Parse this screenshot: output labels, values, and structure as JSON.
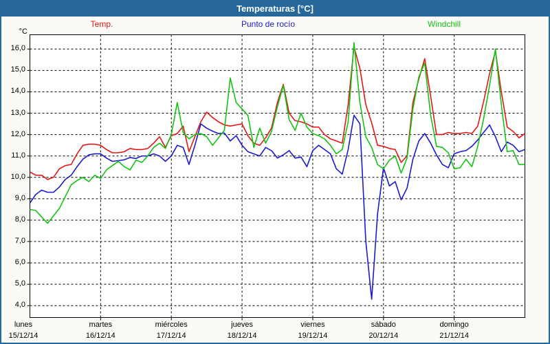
{
  "window": {
    "title": "Temperaturas [°C]",
    "titlebar_color": "#26689B",
    "border_color": "#26689B",
    "background_color": "#fafbf6",
    "plot_background": "#ffffff"
  },
  "legend": {
    "temp_label": "Temp.",
    "dewpoint_label": "Punto de rocío",
    "windchill_label": "Windchill"
  },
  "axis": {
    "unit_label": "°C",
    "ytick_labels": [
      "16,0",
      "15,0",
      "14,0",
      "13,0",
      "12,0",
      "11,0",
      "10,0",
      "9,0",
      "8,0",
      "7,0",
      "6,0",
      "5,0",
      "4,0"
    ]
  },
  "chart_data": {
    "type": "line",
    "title": "Temperaturas [°C]",
    "xlabel": "",
    "ylabel": "°C",
    "ylim": [
      4.0,
      16.0
    ],
    "grid": "dashed",
    "legend_position": "top",
    "x_days": [
      {
        "name": "lunes",
        "date": "15/12/14"
      },
      {
        "name": "martes",
        "date": "16/12/14"
      },
      {
        "name": "miércoles",
        "date": "17/12/14"
      },
      {
        "name": "jueves",
        "date": "18/12/14"
      },
      {
        "name": "viernes",
        "date": "19/12/14"
      },
      {
        "name": "sábado",
        "date": "20/12/14"
      },
      {
        "name": "domingo",
        "date": "21/12/14"
      }
    ],
    "hours_per_point": 2,
    "series": [
      {
        "name": "Temp.",
        "color": "#e81515",
        "values": [
          10.25,
          10.1,
          10.1,
          9.9,
          10.0,
          10.4,
          10.55,
          10.6,
          11.1,
          11.5,
          11.55,
          11.55,
          11.5,
          11.3,
          11.15,
          11.15,
          11.2,
          11.35,
          11.3,
          11.3,
          11.35,
          11.6,
          11.9,
          11.4,
          11.95,
          12.05,
          12.4,
          11.2,
          11.9,
          12.6,
          13.05,
          12.8,
          12.6,
          12.45,
          12.4,
          12.45,
          12.5,
          11.95,
          11.6,
          11.5,
          11.85,
          12.3,
          13.5,
          14.35,
          13.0,
          12.65,
          12.6,
          12.5,
          12.35,
          12.35,
          12.0,
          11.8,
          11.7,
          11.6,
          13.4,
          16.1,
          15.1,
          13.4,
          12.55,
          11.5,
          11.45,
          11.35,
          11.3,
          10.7,
          11.0,
          13.5,
          14.6,
          15.55,
          13.8,
          12.0,
          12.0,
          12.1,
          12.05,
          12.05,
          12.1,
          12.05,
          12.4,
          13.55,
          14.85,
          15.9,
          14.0,
          12.35,
          12.15,
          11.85,
          12.05
        ]
      },
      {
        "name": "Punto de rocío",
        "color": "#1a1ad1",
        "values": [
          8.8,
          9.2,
          9.4,
          9.3,
          9.3,
          9.55,
          9.9,
          10.1,
          10.5,
          10.85,
          11.05,
          11.1,
          11.1,
          10.9,
          10.75,
          10.78,
          10.82,
          10.93,
          10.88,
          11.0,
          11.0,
          11.1,
          11.0,
          10.75,
          11.0,
          11.5,
          11.4,
          10.6,
          11.5,
          12.5,
          12.3,
          12.16,
          12.05,
          12.07,
          11.7,
          11.95,
          11.5,
          11.2,
          11.1,
          11.0,
          11.4,
          11.25,
          10.9,
          11.05,
          11.25,
          10.9,
          10.95,
          10.5,
          11.25,
          11.5,
          11.3,
          11.1,
          10.4,
          10.15,
          11.3,
          12.9,
          12.5,
          7.0,
          4.3,
          8.3,
          10.45,
          9.6,
          9.8,
          8.95,
          9.5,
          10.85,
          11.7,
          12.05,
          11.6,
          11.05,
          10.6,
          10.45,
          11.1,
          11.2,
          11.25,
          11.45,
          11.75,
          12.1,
          12.45,
          11.9,
          11.2,
          11.65,
          11.5,
          11.2,
          11.3
        ]
      },
      {
        "name": "Windchill",
        "color": "#12c412",
        "values": [
          8.5,
          8.45,
          8.15,
          7.85,
          8.2,
          8.55,
          9.1,
          9.65,
          9.85,
          10.0,
          9.8,
          10.1,
          9.95,
          10.35,
          10.55,
          10.75,
          10.5,
          10.35,
          10.8,
          10.7,
          11.0,
          11.4,
          11.6,
          11.35,
          12.0,
          13.5,
          12.1,
          11.8,
          12.0,
          12.05,
          11.9,
          11.5,
          11.85,
          12.2,
          14.65,
          13.5,
          13.2,
          12.9,
          11.4,
          12.3,
          11.6,
          12.15,
          13.3,
          14.3,
          12.7,
          12.2,
          13.0,
          12.35,
          12.05,
          11.95,
          11.8,
          11.5,
          11.1,
          11.3,
          12.6,
          16.3,
          13.5,
          11.9,
          11.4,
          10.6,
          10.4,
          10.8,
          11.0,
          10.2,
          10.9,
          13.2,
          14.7,
          15.35,
          12.9,
          11.45,
          11.4,
          11.15,
          10.4,
          10.45,
          10.85,
          10.5,
          11.45,
          12.75,
          14.3,
          16.0,
          13.4,
          11.2,
          11.25,
          10.6,
          10.6
        ]
      }
    ]
  }
}
